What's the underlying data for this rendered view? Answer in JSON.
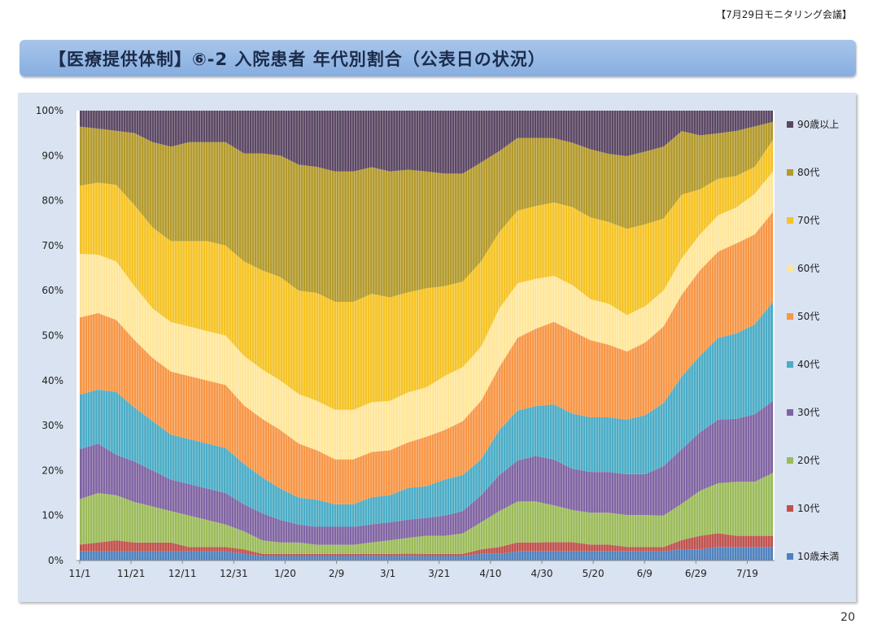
{
  "header": {
    "meeting": "【7月29日モニタリング会議】",
    "title": "【医療提供体制】⑥-2 入院患者 年代別割合（公表日の状況）",
    "page_number": "20"
  },
  "chart_data": {
    "type": "area",
    "stacked": true,
    "percent": true,
    "title": "",
    "xlabel": "",
    "ylabel": "",
    "ylim": [
      0,
      100
    ],
    "yticks": [
      "0%",
      "10%",
      "20%",
      "30%",
      "40%",
      "50%",
      "60%",
      "70%",
      "80%",
      "90%",
      "100%"
    ],
    "xticks": [
      "11/1",
      "11/21",
      "12/11",
      "12/31",
      "1/20",
      "2/9",
      "3/1",
      "3/21",
      "4/10",
      "4/30",
      "5/20",
      "6/9",
      "6/29",
      "7/19"
    ],
    "grid": false,
    "legend": "right",
    "categories": [
      "11/1",
      "11/8",
      "11/15",
      "11/22",
      "11/29",
      "12/6",
      "12/13",
      "12/20",
      "12/27",
      "1/3",
      "1/10",
      "1/17",
      "1/24",
      "1/31",
      "2/7",
      "2/14",
      "2/21",
      "2/28",
      "3/7",
      "3/14",
      "3/21",
      "3/28",
      "4/4",
      "4/11",
      "4/18",
      "4/25",
      "5/2",
      "5/9",
      "5/16",
      "5/23",
      "5/30",
      "6/6",
      "6/13",
      "6/20",
      "6/27",
      "7/4",
      "7/11",
      "7/18",
      "7/25"
    ],
    "series": [
      {
        "name": "10歳未満",
        "color": "#4f81bd",
        "values": [
          2,
          2,
          2,
          2,
          2,
          2,
          2,
          2,
          2,
          1.5,
          1,
          1,
          1,
          1,
          1,
          1,
          1,
          1,
          1,
          1,
          1,
          1,
          1.5,
          1.5,
          2,
          2,
          2,
          2,
          2,
          2,
          2,
          2,
          2,
          2.5,
          2.5,
          3,
          3,
          3,
          3
        ]
      },
      {
        "name": "10代",
        "color": "#c0504d",
        "values": [
          1.5,
          2,
          2.5,
          2,
          2,
          2,
          1,
          1,
          1,
          1,
          0.5,
          0.5,
          0.5,
          0.5,
          0.5,
          0.5,
          0.5,
          0.5,
          0.5,
          0.5,
          0.5,
          0.5,
          1,
          1.5,
          2,
          2,
          2,
          2,
          1.5,
          1.5,
          1,
          1,
          1,
          2,
          3,
          3,
          2.5,
          2.5,
          2.5
        ]
      },
      {
        "name": "20代",
        "color": "#9bbb59",
        "values": [
          10,
          11,
          10,
          9,
          8,
          7,
          7,
          6,
          5,
          4,
          3,
          2.5,
          2.5,
          2,
          2,
          2,
          2.5,
          3,
          3.5,
          4,
          4,
          4.5,
          6,
          8,
          9,
          9,
          8,
          7,
          7,
          7,
          7,
          7,
          7,
          8,
          10,
          11,
          12,
          12,
          14
        ]
      },
      {
        "name": "30代",
        "color": "#8064a2",
        "values": [
          11,
          11,
          9,
          9,
          8,
          7,
          7,
          7,
          7,
          6,
          6,
          5,
          4,
          4,
          4,
          4,
          4,
          4,
          4,
          4,
          4.5,
          5,
          6,
          8,
          9,
          10,
          10,
          9,
          9,
          9,
          9,
          9,
          11,
          12,
          13,
          14,
          14,
          15,
          16
        ]
      },
      {
        "name": "40代",
        "color": "#4bacc6",
        "values": [
          12,
          12,
          14,
          12,
          11,
          10,
          10,
          10,
          10,
          9,
          8,
          7,
          6,
          6,
          5,
          5,
          6,
          6,
          7,
          7,
          8,
          8,
          8,
          10,
          11,
          11,
          12,
          12,
          12,
          12,
          12,
          13,
          14,
          16,
          17,
          18,
          19,
          20,
          22
        ]
      },
      {
        "name": "50代",
        "color": "#f79646",
        "values": [
          17,
          17,
          16,
          15,
          14,
          14,
          14,
          14,
          14,
          13,
          13,
          13,
          12,
          11,
          10,
          10,
          10,
          10,
          10,
          11,
          11,
          12,
          13,
          14,
          16,
          17,
          18,
          18,
          17,
          16,
          15,
          16,
          17,
          18,
          19,
          19,
          20,
          20,
          20
        ]
      },
      {
        "name": "60代",
        "color": "#ffe699",
        "values": [
          14,
          13,
          13,
          12,
          11,
          11,
          11,
          11,
          11,
          11,
          11,
          11,
          11,
          11,
          11,
          11,
          11,
          11,
          11,
          11,
          12,
          12,
          12,
          13,
          12,
          11,
          10,
          10,
          9,
          9,
          8,
          8,
          8,
          8,
          8,
          8,
          8,
          9,
          9
        ]
      },
      {
        "name": "70代",
        "color": "#f5c324",
        "values": [
          15,
          16,
          17,
          18,
          18,
          18,
          19,
          20,
          20,
          21,
          22,
          23,
          23,
          24,
          24,
          24,
          24,
          23,
          22,
          22,
          20,
          19,
          19,
          17,
          16,
          16,
          16,
          17,
          18,
          18,
          19,
          18,
          16,
          14,
          10,
          8,
          7,
          6,
          7
        ]
      },
      {
        "name": "80代",
        "color": "#b39a2c",
        "values": [
          13,
          12,
          12,
          16,
          19,
          21,
          22,
          22,
          23,
          24,
          26,
          27,
          28,
          28,
          29,
          29,
          28,
          28,
          27,
          26,
          25,
          24,
          22,
          18,
          16,
          15,
          14,
          14,
          15,
          15,
          16,
          16,
          16,
          14,
          12,
          10,
          10,
          9,
          4
        ]
      },
      {
        "name": "90歳以上",
        "color": "#5b4763",
        "values": [
          3.5,
          4,
          4.5,
          5,
          7,
          8,
          7,
          7,
          7,
          9.5,
          9.5,
          10,
          12,
          12.5,
          13.5,
          13.5,
          12.5,
          13.5,
          13,
          13.5,
          14,
          14,
          11.5,
          9,
          6,
          6,
          6,
          7,
          8.5,
          9.5,
          10,
          9,
          8,
          4.5,
          5.5,
          5,
          4.5,
          3.5,
          2.5
        ]
      }
    ]
  }
}
